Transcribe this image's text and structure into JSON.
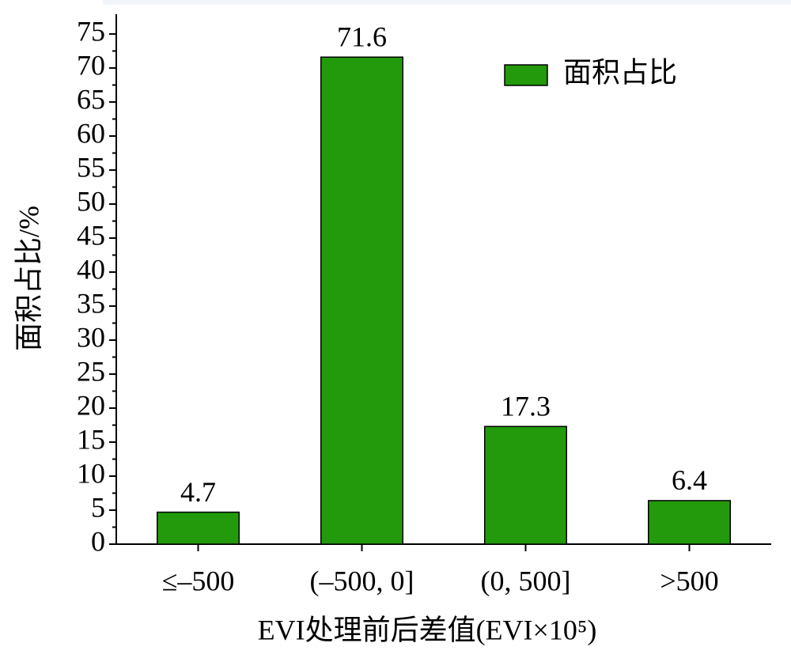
{
  "chart_data": {
    "type": "bar",
    "y_label": "面积占比/%",
    "x_label": "EVI处理前后差值(EVI×10⁵)",
    "categories": [
      "≤–500",
      "(–500, 0]",
      "(0, 500]",
      ">500"
    ],
    "series": [
      {
        "name": "面积占比",
        "color": "#239a0b",
        "values": [
          4.7,
          71.6,
          17.3,
          6.4
        ]
      }
    ],
    "ylim": [
      0,
      75
    ],
    "yticks": [
      0,
      5,
      10,
      15,
      20,
      25,
      30,
      35,
      40,
      45,
      50,
      55,
      60,
      65,
      70,
      75
    ],
    "legend": "upper right",
    "grid": false
  }
}
